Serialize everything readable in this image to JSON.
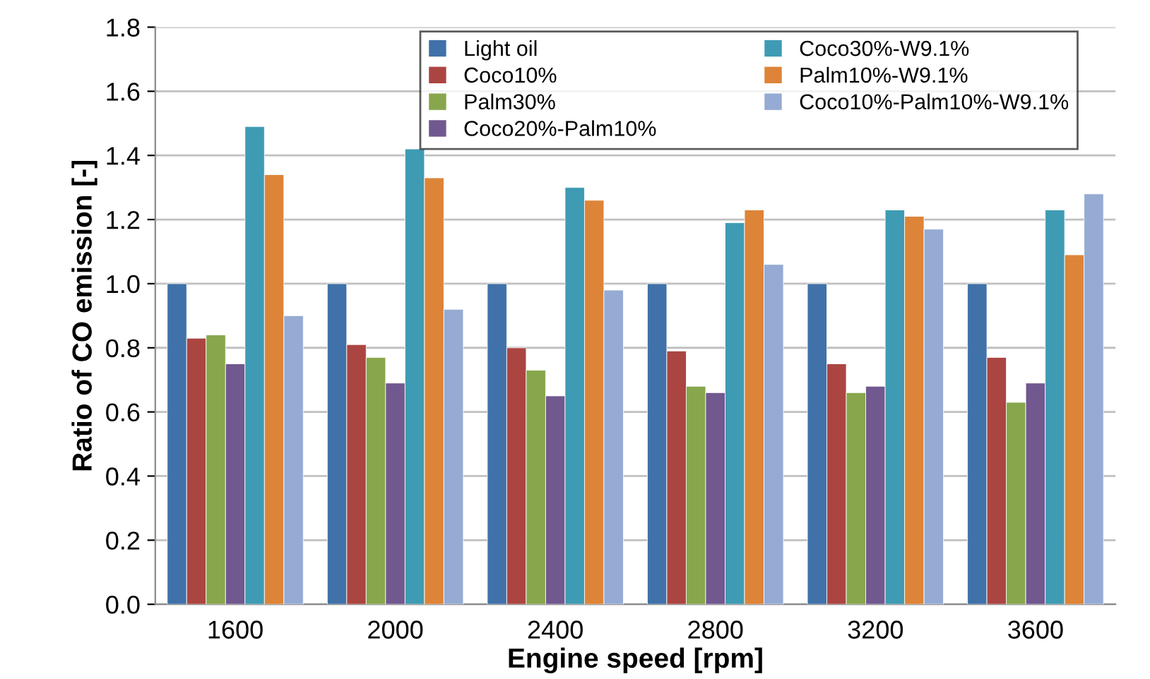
{
  "chart_data": {
    "type": "bar",
    "xlabel": "Engine speed [rpm]",
    "ylabel": "Ratio of CO emission [-]",
    "categories": [
      "1600",
      "2000",
      "2400",
      "2800",
      "3200",
      "3600"
    ],
    "series": [
      {
        "name": "Light oil",
        "color": "#4071a8",
        "values": [
          1.0,
          1.0,
          1.0,
          1.0,
          1.0,
          1.0
        ]
      },
      {
        "name": "Coco10%",
        "color": "#ab4542",
        "values": [
          0.83,
          0.81,
          0.8,
          0.79,
          0.75,
          0.77
        ]
      },
      {
        "name": "Palm30%",
        "color": "#88a64b",
        "values": [
          0.84,
          0.77,
          0.73,
          0.68,
          0.66,
          0.63
        ]
      },
      {
        "name": "Coco20%-Palm10%",
        "color": "#71588f",
        "values": [
          0.75,
          0.69,
          0.65,
          0.66,
          0.68,
          0.69
        ]
      },
      {
        "name": "Coco30%-W9.1%",
        "color": "#3e9bb3",
        "values": [
          1.49,
          1.42,
          1.3,
          1.19,
          1.23,
          1.23
        ]
      },
      {
        "name": "Palm10%-W9.1%",
        "color": "#dd8438",
        "values": [
          1.34,
          1.33,
          1.26,
          1.23,
          1.21,
          1.09
        ]
      },
      {
        "name": "Coco10%-Palm10%-W9.1%",
        "color": "#95abd3",
        "values": [
          0.9,
          0.92,
          0.98,
          1.06,
          1.17,
          1.28
        ]
      }
    ],
    "ylim": [
      0,
      1.8
    ],
    "yticks": [
      {
        "value": 0,
        "label": "0.0"
      },
      {
        "value": 0.2,
        "label": "0.2"
      },
      {
        "value": 0.4,
        "label": "0.4"
      },
      {
        "value": 0.6,
        "label": "0.6"
      },
      {
        "value": 0.8,
        "label": "0.8"
      },
      {
        "value": 1.0,
        "label": "1.0"
      },
      {
        "value": 1.2,
        "label": "1.2"
      },
      {
        "value": 1.4,
        "label": "1.4"
      },
      {
        "value": 1.6,
        "label": "1.6"
      },
      {
        "value": 1.8,
        "label": "1.8"
      }
    ],
    "grid": "y",
    "legend": "top right"
  }
}
